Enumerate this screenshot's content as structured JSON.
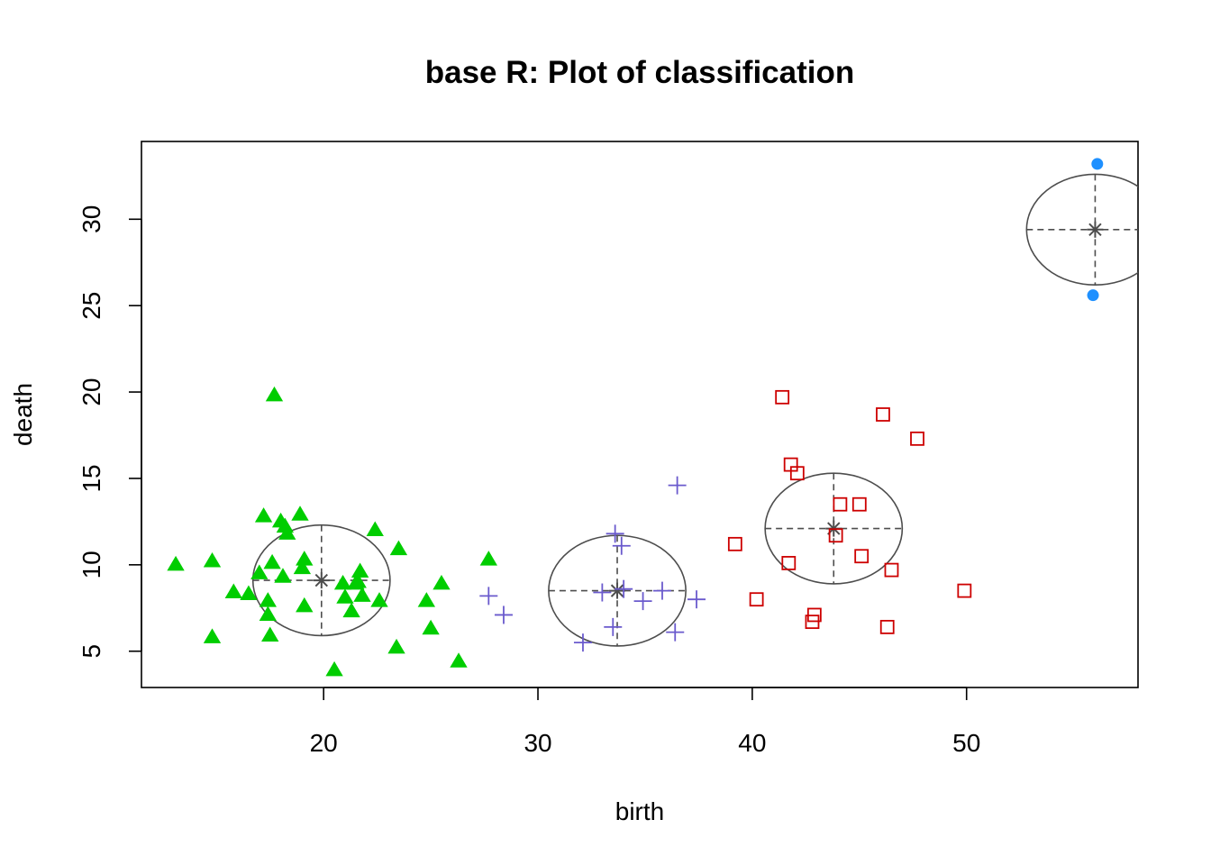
{
  "chart_data": {
    "type": "scatter",
    "title": "base R: Plot of classification",
    "xlabel": "birth",
    "ylabel": "death",
    "xlim": [
      11.5,
      58
    ],
    "ylim": [
      2.9,
      34.5
    ],
    "xticks": [
      20,
      30,
      40,
      50
    ],
    "yticks": [
      5,
      10,
      15,
      20,
      25,
      30
    ],
    "colors": {
      "green": "#00CD00",
      "purple": "#6A5ACD",
      "red": "#CD0000",
      "blue": "#1E90FF",
      "ellipse": "#4D4D4D"
    },
    "series": [
      {
        "marker": "triangle",
        "color": "#00CD00",
        "points": [
          [
            13.1,
            10.0
          ],
          [
            14.8,
            10.2
          ],
          [
            14.8,
            5.8
          ],
          [
            15.8,
            8.4
          ],
          [
            16.5,
            8.3
          ],
          [
            17.0,
            9.5
          ],
          [
            17.2,
            12.8
          ],
          [
            17.4,
            7.1
          ],
          [
            17.4,
            7.9
          ],
          [
            17.5,
            5.9
          ],
          [
            17.6,
            10.1
          ],
          [
            17.7,
            19.8
          ],
          [
            18.0,
            12.5
          ],
          [
            18.1,
            9.3
          ],
          [
            18.2,
            12.2
          ],
          [
            18.3,
            11.8
          ],
          [
            18.9,
            12.9
          ],
          [
            19.0,
            9.8
          ],
          [
            19.1,
            10.3
          ],
          [
            19.1,
            7.6
          ],
          [
            20.5,
            3.9
          ],
          [
            20.9,
            8.9
          ],
          [
            21.0,
            8.1
          ],
          [
            21.3,
            7.3
          ],
          [
            21.5,
            8.9
          ],
          [
            21.6,
            9.0
          ],
          [
            21.7,
            9.6
          ],
          [
            21.8,
            8.2
          ],
          [
            22.4,
            12.0
          ],
          [
            22.6,
            7.9
          ],
          [
            23.4,
            5.2
          ],
          [
            23.5,
            10.9
          ],
          [
            24.8,
            7.9
          ],
          [
            25.0,
            6.3
          ],
          [
            25.5,
            8.9
          ],
          [
            26.3,
            4.4
          ],
          [
            27.7,
            10.3
          ]
        ]
      },
      {
        "marker": "plus",
        "color": "#6A5ACD",
        "points": [
          [
            27.7,
            8.2
          ],
          [
            28.4,
            7.1
          ],
          [
            32.1,
            5.5
          ],
          [
            33.0,
            8.4
          ],
          [
            33.5,
            6.4
          ],
          [
            33.6,
            11.8
          ],
          [
            33.9,
            11.1
          ],
          [
            34.0,
            8.6
          ],
          [
            34.9,
            7.9
          ],
          [
            35.8,
            8.5
          ],
          [
            36.4,
            6.1
          ],
          [
            36.5,
            14.6
          ],
          [
            37.4,
            8.0
          ]
        ]
      },
      {
        "marker": "square",
        "color": "#CD0000",
        "points": [
          [
            39.2,
            11.2
          ],
          [
            40.2,
            8.0
          ],
          [
            41.4,
            19.7
          ],
          [
            41.7,
            10.1
          ],
          [
            41.8,
            15.8
          ],
          [
            42.1,
            15.3
          ],
          [
            42.8,
            6.7
          ],
          [
            42.9,
            7.1
          ],
          [
            43.9,
            11.7
          ],
          [
            44.1,
            13.5
          ],
          [
            45.0,
            13.5
          ],
          [
            45.1,
            10.5
          ],
          [
            46.1,
            18.7
          ],
          [
            46.3,
            6.4
          ],
          [
            46.5,
            9.7
          ],
          [
            47.7,
            17.3
          ],
          [
            49.9,
            8.5
          ]
        ]
      },
      {
        "marker": "circle",
        "color": "#1E90FF",
        "points": [
          [
            56.1,
            33.2
          ],
          [
            55.9,
            25.6
          ]
        ]
      }
    ],
    "components": [
      {
        "center": [
          19.9,
          9.1
        ],
        "rx": 3.2,
        "ry": 3.2
      },
      {
        "center": [
          33.7,
          8.5
        ],
        "rx": 3.2,
        "ry": 3.2
      },
      {
        "center": [
          43.8,
          12.1
        ],
        "rx": 3.2,
        "ry": 3.2
      },
      {
        "center": [
          56.0,
          29.4
        ],
        "rx": 3.2,
        "ry": 3.2
      }
    ]
  }
}
